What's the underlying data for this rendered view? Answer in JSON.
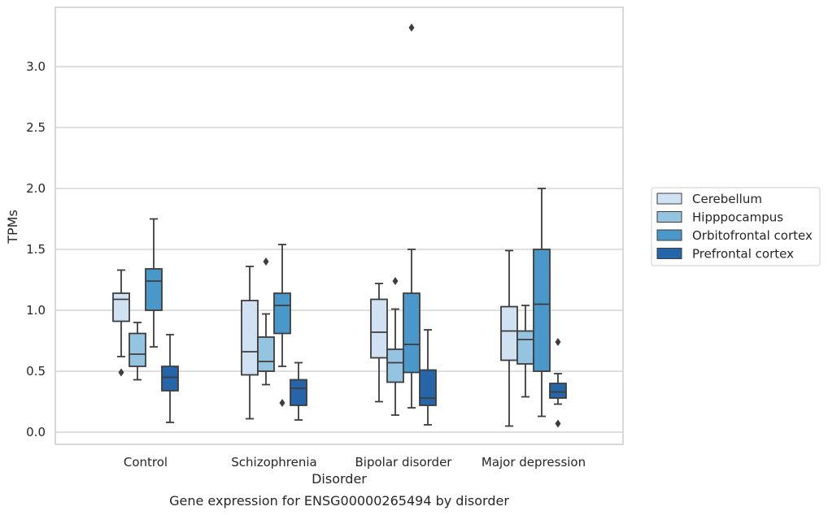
{
  "chart_data": {
    "type": "box",
    "title": "",
    "xlabel": "Disorder",
    "ylabel": "TPMs",
    "caption": "Gene expression for ENSG00000265494 by disorder",
    "categories": [
      "Control",
      "Schizophrenia",
      "Bipolar disorder",
      "Major depression"
    ],
    "ylim": [
      -0.1,
      3.5
    ],
    "yticks": [
      0.0,
      0.5,
      1.0,
      1.5,
      2.0,
      2.5,
      3.0
    ],
    "ytick_labels": [
      "0.0",
      "0.5",
      "1.0",
      "1.5",
      "2.0",
      "2.5",
      "3.0"
    ],
    "grid": "horizontal",
    "legend_position": "right",
    "series": [
      {
        "name": "Cerebellum",
        "color": "#d0e1f2",
        "boxes": [
          {
            "whisker_low": 0.62,
            "q1": 0.91,
            "median": 1.09,
            "q3": 1.14,
            "whisker_high": 1.33,
            "outliers": [
              0.49
            ]
          },
          {
            "whisker_low": 0.11,
            "q1": 0.47,
            "median": 0.66,
            "q3": 1.08,
            "whisker_high": 1.36,
            "outliers": []
          },
          {
            "whisker_low": 0.25,
            "q1": 0.61,
            "median": 0.82,
            "q3": 1.09,
            "whisker_high": 1.22,
            "outliers": []
          },
          {
            "whisker_low": 0.05,
            "q1": 0.59,
            "median": 0.83,
            "q3": 1.03,
            "whisker_high": 1.49,
            "outliers": []
          }
        ]
      },
      {
        "name": "Hipppocampus",
        "color": "#94c4df",
        "boxes": [
          {
            "whisker_low": 0.43,
            "q1": 0.54,
            "median": 0.64,
            "q3": 0.81,
            "whisker_high": 0.9,
            "outliers": []
          },
          {
            "whisker_low": 0.39,
            "q1": 0.5,
            "median": 0.58,
            "q3": 0.78,
            "whisker_high": 0.97,
            "outliers": [
              1.4
            ]
          },
          {
            "whisker_low": 0.14,
            "q1": 0.41,
            "median": 0.57,
            "q3": 0.68,
            "whisker_high": 1.01,
            "outliers": [
              1.24
            ]
          },
          {
            "whisker_low": 0.29,
            "q1": 0.56,
            "median": 0.76,
            "q3": 0.83,
            "whisker_high": 1.04,
            "outliers": []
          }
        ]
      },
      {
        "name": "Orbitofrontal cortex",
        "color": "#4a98c9",
        "boxes": [
          {
            "whisker_low": 0.7,
            "q1": 1.0,
            "median": 1.24,
            "q3": 1.34,
            "whisker_high": 1.75,
            "outliers": []
          },
          {
            "whisker_low": 0.54,
            "q1": 0.81,
            "median": 1.04,
            "q3": 1.14,
            "whisker_high": 1.54,
            "outliers": [
              0.24
            ]
          },
          {
            "whisker_low": 0.2,
            "q1": 0.49,
            "median": 0.72,
            "q3": 1.14,
            "whisker_high": 1.5,
            "outliers": [
              3.32
            ]
          },
          {
            "whisker_low": 0.13,
            "q1": 0.5,
            "median": 1.05,
            "q3": 1.5,
            "whisker_high": 2.0,
            "outliers": []
          }
        ]
      },
      {
        "name": "Prefrontal cortex",
        "color": "#2666a8",
        "boxes": [
          {
            "whisker_low": 0.08,
            "q1": 0.34,
            "median": 0.45,
            "q3": 0.54,
            "whisker_high": 0.8,
            "outliers": []
          },
          {
            "whisker_low": 0.1,
            "q1": 0.22,
            "median": 0.36,
            "q3": 0.43,
            "whisker_high": 0.57,
            "outliers": []
          },
          {
            "whisker_low": 0.06,
            "q1": 0.22,
            "median": 0.28,
            "q3": 0.51,
            "whisker_high": 0.84,
            "outliers": []
          },
          {
            "whisker_low": 0.23,
            "q1": 0.28,
            "median": 0.33,
            "q3": 0.4,
            "whisker_high": 0.48,
            "outliers": [
              0.74,
              0.07
            ]
          }
        ]
      }
    ]
  }
}
